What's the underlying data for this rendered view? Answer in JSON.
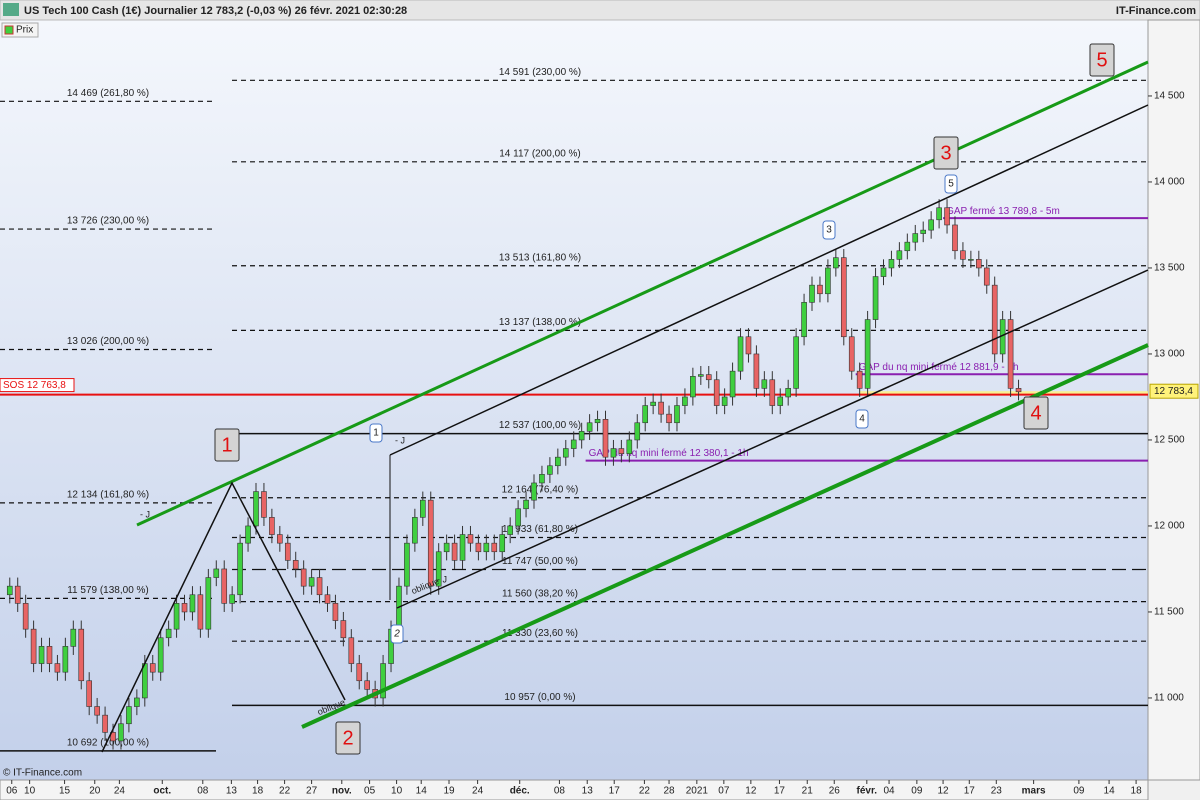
{
  "chart_data": {
    "type": "candlestick",
    "title": "US Tech 100 Cash (1€) Journalier 12 783,2 (-0,03 %) 26 févr. 2021 02:30:28",
    "source": "IT-Finance.com",
    "copyright": "© IT-Finance.com",
    "legend": "Prix",
    "up_color": "#3fcf3f",
    "down_color": "#e86464",
    "open": [
      11600,
      11650,
      11550,
      11400,
      11200,
      11300,
      11200,
      11150,
      11300,
      11400,
      11100,
      10950,
      10900,
      10800,
      10750,
      10850,
      10950,
      11000,
      11200,
      11150,
      11350,
      11400,
      11550,
      11500,
      11600,
      11400,
      11700,
      11750,
      11550,
      11600,
      11900,
      12000,
      12200,
      12050,
      11950,
      11900,
      11800,
      11750,
      11650,
      11700,
      11600,
      11550,
      11450,
      11350,
      11200,
      11100,
      11050,
      11000,
      11200,
      11400,
      11650,
      11900,
      12050,
      12150,
      11650,
      11850,
      11900,
      11800,
      11950,
      11900,
      11850,
      11900,
      11850,
      11950,
      12000,
      12100,
      12150,
      12250,
      12300,
      12350,
      12400,
      12450,
      12500,
      12550,
      12600,
      12620,
      12400,
      12450,
      12420,
      12500,
      12600,
      12700,
      12720,
      12650,
      12600,
      12700,
      12750,
      12870,
      12880,
      12850,
      12700,
      12750,
      12900,
      13100,
      13000,
      12800,
      12850,
      12700,
      12750,
      12800,
      13100,
      13300,
      13400,
      13350,
      13500,
      13560,
      13100,
      12900,
      12800,
      13200,
      13450,
      13500,
      13550,
      13600,
      13650,
      13700,
      13720,
      13780,
      13850,
      13750,
      13600,
      13550,
      13550,
      13500,
      13400,
      13000,
      13200,
      12800
    ],
    "high": [
      11700,
      11700,
      11600,
      11450,
      11350,
      11350,
      11250,
      11350,
      11450,
      11450,
      11150,
      11000,
      10950,
      10850,
      10900,
      11000,
      11050,
      11250,
      11250,
      11400,
      11450,
      11600,
      11600,
      11650,
      11650,
      11750,
      11800,
      11800,
      11650,
      11950,
      12050,
      12250,
      12250,
      12100,
      12000,
      11950,
      11850,
      11800,
      11750,
      11750,
      11650,
      11600,
      11500,
      11400,
      11250,
      11150,
      11100,
      11250,
      11450,
      11700,
      11950,
      12100,
      12200,
      12200,
      11900,
      11950,
      11950,
      12000,
      12000,
      11950,
      11950,
      11950,
      12000,
      12050,
      12150,
      12200,
      12300,
      12350,
      12400,
      12450,
      12500,
      12550,
      12600,
      12650,
      12670,
      12670,
      12500,
      12500,
      12550,
      12650,
      12750,
      12770,
      12770,
      12700,
      12750,
      12800,
      12920,
      12930,
      12930,
      12900,
      12800,
      12950,
      13150,
      13150,
      13050,
      12900,
      12900,
      12800,
      12850,
      13150,
      13350,
      13450,
      13450,
      13550,
      13610,
      13610,
      13150,
      12950,
      13250,
      13500,
      13550,
      13600,
      13650,
      13700,
      13750,
      13770,
      13830,
      13900,
      13900,
      13800,
      13650,
      13600,
      13600,
      13550,
      13450,
      13250,
      13250,
      12850
    ],
    "low": [
      11550,
      11500,
      11350,
      11150,
      11150,
      11150,
      11100,
      11100,
      11250,
      11050,
      10900,
      10850,
      10750,
      10700,
      10700,
      10800,
      10900,
      10950,
      11100,
      11100,
      11300,
      11350,
      11450,
      11450,
      11350,
      11350,
      11650,
      11500,
      11500,
      11550,
      11850,
      11950,
      12000,
      11900,
      11850,
      11750,
      11700,
      11600,
      11600,
      11550,
      11500,
      11400,
      11300,
      11150,
      11050,
      11000,
      10950,
      10950,
      11150,
      11350,
      11600,
      11850,
      12000,
      11600,
      11600,
      11800,
      11750,
      11750,
      11850,
      11800,
      11800,
      11800,
      11800,
      11900,
      11950,
      12050,
      12100,
      12200,
      12250,
      12300,
      12350,
      12400,
      12450,
      12500,
      12550,
      12350,
      12350,
      12370,
      12370,
      12450,
      12550,
      12650,
      12600,
      12550,
      12550,
      12650,
      12700,
      12820,
      12800,
      12650,
      12650,
      12700,
      12850,
      12950,
      12750,
      12750,
      12650,
      12650,
      12700,
      12750,
      13050,
      13250,
      13300,
      13300,
      13450,
      13050,
      12850,
      12750,
      12750,
      13150,
      13400,
      13450,
      13500,
      13550,
      13600,
      13650,
      13670,
      13730,
      13700,
      13550,
      13500,
      13500,
      13450,
      13350,
      12950,
      12950,
      12750,
      12730
    ],
    "close": [
      11650,
      11550,
      11400,
      11200,
      11300,
      11200,
      11150,
      11300,
      11400,
      11100,
      10950,
      10900,
      10800,
      10750,
      10850,
      10950,
      11000,
      11200,
      11150,
      11350,
      11400,
      11550,
      11500,
      11600,
      11400,
      11700,
      11750,
      11550,
      11600,
      11900,
      12000,
      12200,
      12050,
      11950,
      11900,
      11800,
      11750,
      11650,
      11700,
      11600,
      11550,
      11450,
      11350,
      11200,
      11100,
      11050,
      11000,
      11200,
      11400,
      11650,
      11900,
      12050,
      12150,
      11650,
      11850,
      11900,
      11800,
      11950,
      11900,
      11850,
      11900,
      11850,
      11950,
      12000,
      12100,
      12150,
      12250,
      12300,
      12350,
      12400,
      12450,
      12500,
      12550,
      12600,
      12620,
      12400,
      12450,
      12420,
      12500,
      12600,
      12700,
      12720,
      12650,
      12600,
      12700,
      12750,
      12870,
      12880,
      12850,
      12700,
      12750,
      12900,
      13100,
      13000,
      12800,
      12850,
      12700,
      12750,
      12800,
      13100,
      13300,
      13400,
      13350,
      13500,
      13560,
      13100,
      12900,
      12800,
      13200,
      13450,
      13500,
      13550,
      13600,
      13650,
      13700,
      13720,
      13780,
      13850,
      13750,
      13600,
      13550,
      13550,
      13500,
      13400,
      13000,
      13200,
      12800,
      12780
    ],
    "xlim": [
      -0.6,
      143.3
    ],
    "xticks": [
      {
        "value": 0.25,
        "label": "06"
      },
      {
        "value": 2.5,
        "label": "10"
      },
      {
        "value": 6.9,
        "label": "15"
      },
      {
        "value": 10.7,
        "label": "20"
      },
      {
        "value": 13.8,
        "label": "24"
      },
      {
        "value": 19.2,
        "label": "oct."
      },
      {
        "value": 24.3,
        "label": "08"
      },
      {
        "value": 27.9,
        "label": "13"
      },
      {
        "value": 31.2,
        "label": "18"
      },
      {
        "value": 34.6,
        "label": "22"
      },
      {
        "value": 38,
        "label": "27"
      },
      {
        "value": 41.8,
        "label": "nov."
      },
      {
        "value": 45.3,
        "label": "05"
      },
      {
        "value": 48.7,
        "label": "10"
      },
      {
        "value": 51.8,
        "label": "14"
      },
      {
        "value": 55.3,
        "label": "19"
      },
      {
        "value": 58.9,
        "label": "24"
      },
      {
        "value": 64.2,
        "label": "déc."
      },
      {
        "value": 69.2,
        "label": "08"
      },
      {
        "value": 72.7,
        "label": "13"
      },
      {
        "value": 76.1,
        "label": "17"
      },
      {
        "value": 79.9,
        "label": "22"
      },
      {
        "value": 83,
        "label": "28"
      },
      {
        "value": 86.5,
        "label": "2021"
      },
      {
        "value": 89.9,
        "label": "07"
      },
      {
        "value": 93.3,
        "label": "12"
      },
      {
        "value": 96.9,
        "label": "17"
      },
      {
        "value": 100.4,
        "label": "21"
      },
      {
        "value": 103.8,
        "label": "26"
      },
      {
        "value": 107.9,
        "label": "févr."
      },
      {
        "value": 110.7,
        "label": "04"
      },
      {
        "value": 114.2,
        "label": "09"
      },
      {
        "value": 117.5,
        "label": "12"
      },
      {
        "value": 120.8,
        "label": "17"
      },
      {
        "value": 124.2,
        "label": "23"
      },
      {
        "value": 128.9,
        "label": "mars"
      },
      {
        "value": 134.6,
        "label": "09"
      },
      {
        "value": 138.4,
        "label": "14"
      },
      {
        "value": 141.8,
        "label": "18"
      }
    ],
    "ylim": [
      10523,
      14930
    ],
    "yticks": [
      {
        "value": 11000,
        "label": "11 000"
      },
      {
        "value": 11500,
        "label": "11 500"
      },
      {
        "value": 12000,
        "label": "12 000"
      },
      {
        "value": 12500,
        "label": "12 500"
      },
      {
        "value": 13000,
        "label": "13 000"
      },
      {
        "value": 13500,
        "label": "13 500"
      },
      {
        "value": 14000,
        "label": "14 000"
      },
      {
        "value": 14500,
        "label": "14 500"
      }
    ],
    "last_price": {
      "value": 12783.4,
      "label": "12 783,4"
    },
    "sos": {
      "value": 12763.8,
      "label": "SOS 12 763,8"
    },
    "left_levels": [
      {
        "value": 14469,
        "label": "14 469 (261,80 %)",
        "style": "dashed"
      },
      {
        "value": 13726,
        "label": "13 726 (230,00 %)",
        "style": "dashed"
      },
      {
        "value": 13026,
        "label": "13 026 (200,00 %)",
        "style": "dashed"
      },
      {
        "value": 12134,
        "label": "12 134 (161,80 %)",
        "style": "dashed"
      },
      {
        "value": 11579,
        "label": "11 579 (138,00 %)",
        "style": "dashed"
      },
      {
        "value": 10692,
        "label": "10 692 (100,00 %)",
        "style": "solid"
      }
    ],
    "right_levels": [
      {
        "value": 14591,
        "label": "14 591 (230,00 %)",
        "style": "dashed"
      },
      {
        "value": 14117,
        "label": "14 117 (200,00 %)",
        "style": "dashed"
      },
      {
        "value": 13513,
        "label": "13 513 (161,80 %)",
        "style": "dashed"
      },
      {
        "value": 13137,
        "label": "13 137 (138,00 %)",
        "style": "dashed"
      },
      {
        "value": 12537,
        "label": "12 537 (100,00 %)",
        "style": "solid"
      },
      {
        "value": 12164,
        "label": "12 164 (76,40 %)",
        "style": "dashed"
      },
      {
        "value": 11933,
        "label": "11 933 (61,80 %)",
        "style": "dashed"
      },
      {
        "value": 11747,
        "label": "11 747 (50,00 %)",
        "style": "longdash"
      },
      {
        "value": 11560,
        "label": "11 560 (38,20 %)",
        "style": "dashed"
      },
      {
        "value": 11330,
        "label": "11 330 (23,60 %)",
        "style": "dashed"
      },
      {
        "value": 10957,
        "label": "10 957 (0,00 %)",
        "style": "solid"
      }
    ],
    "gaps": [
      {
        "value": 13789.8,
        "label": "GAP fermé 13 789,8 - 5m",
        "start": 117.5
      },
      {
        "value": 12881.9,
        "label": "GAP du nq mini fermé 12 881,9 - 1h",
        "start": 106.5
      },
      {
        "value": 12380.1,
        "label": "GAP du nq mini fermé 12 380,1 - 1h",
        "start": 72.5
      }
    ],
    "waves": [
      "1",
      "2",
      "3",
      "4",
      "5"
    ],
    "subwaves": [
      "1",
      "2",
      "3",
      "4",
      "5"
    ],
    "notes": [
      "- J",
      "- J",
      "- J",
      "oblique",
      "oblique"
    ]
  }
}
